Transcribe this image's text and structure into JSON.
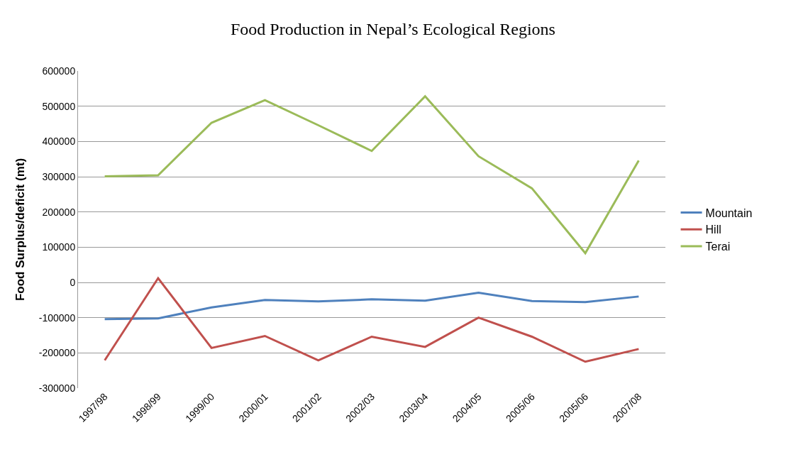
{
  "chart_data": {
    "type": "line",
    "title": "Food Production in Nepal’s Ecological Regions",
    "ylabel": "Food Surplus/deficit (mt)",
    "categories": [
      "1997/98",
      "1998/99",
      "1999/00",
      "2000/01",
      "2001/02",
      "2002/03",
      "2003/04",
      "2004/05",
      "2005/06",
      "2005/06",
      "2007/08"
    ],
    "series": [
      {
        "name": "Mountain",
        "color": "#4f81bd",
        "values": [
          -104000,
          -102000,
          -71000,
          -50000,
          -54000,
          -48000,
          -52000,
          -29000,
          -53000,
          -56000,
          -40000
        ]
      },
      {
        "name": "Hill",
        "color": "#c0504d",
        "values": [
          -221000,
          12000,
          -186000,
          -152000,
          -221000,
          -154000,
          -183000,
          -100000,
          -154000,
          -225000,
          -189000
        ]
      },
      {
        "name": "Terai",
        "color": "#9bbb59",
        "values": [
          301000,
          304000,
          453000,
          517000,
          446000,
          373000,
          528000,
          358000,
          267000,
          83000,
          346000
        ]
      }
    ],
    "ylim": [
      -300000,
      600000
    ],
    "yticks": [
      -300000,
      -200000,
      -100000,
      0,
      100000,
      200000,
      300000,
      400000,
      500000,
      600000
    ],
    "grid": "y",
    "legend": "right",
    "marker": "none",
    "line_style": "solid"
  }
}
